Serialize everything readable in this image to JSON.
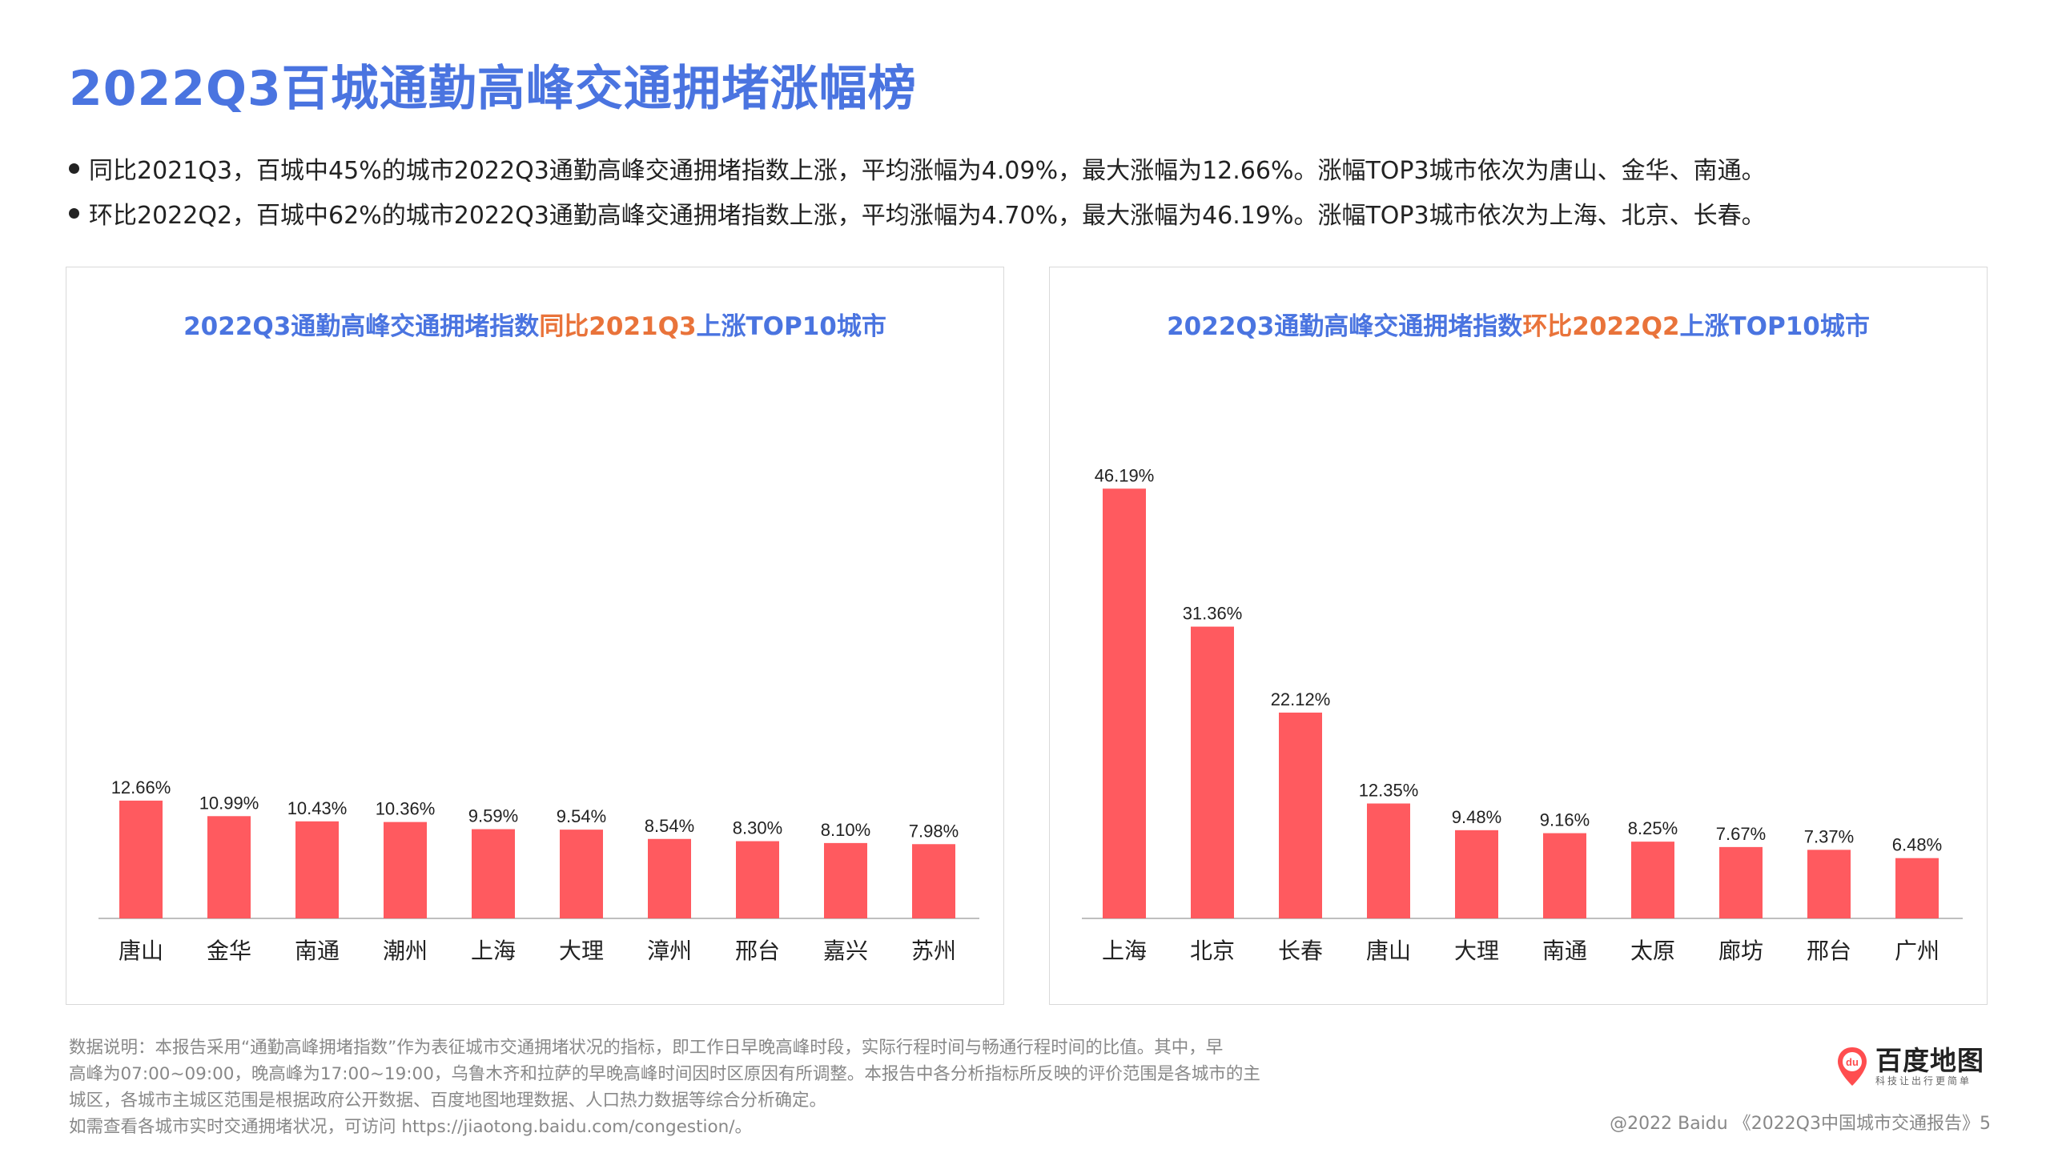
{
  "page": {
    "title": "2022Q3百城通勤高峰交通拥堵涨幅榜",
    "bullets": [
      "同比2021Q3，百城中45%的城市2022Q3通勤高峰交通拥堵指数上涨，平均涨幅为4.09%，最大涨幅为12.66%。涨幅TOP3城市依次为唐山、金华、南通。",
      "环比2022Q2，百城中62%的城市2022Q3通勤高峰交通拥堵指数上涨，平均涨幅为4.70%，最大涨幅为46.19%。涨幅TOP3城市依次为上海、北京、长春。"
    ]
  },
  "left_panel": {
    "title_part1": "2022Q3通勤高峰交通拥堵指数",
    "title_part2": "同比2021Q3",
    "title_part3": "上涨TOP10城市"
  },
  "right_panel": {
    "title_part1": "2022Q3通勤高峰交通拥堵指数",
    "title_part2": "环比2022Q2",
    "title_part3": "上涨TOP10城市"
  },
  "chart_data": [
    {
      "type": "bar",
      "categories": [
        "唐山",
        "金华",
        "南通",
        "潮州",
        "上海",
        "大理",
        "漳州",
        "邢台",
        "嘉兴",
        "苏州"
      ],
      "values": [
        12.66,
        10.99,
        10.43,
        10.36,
        9.59,
        9.54,
        8.54,
        8.3,
        8.1,
        7.98
      ],
      "labels": [
        "12.66%",
        "10.99%",
        "10.43%",
        "10.36%",
        "9.59%",
        "9.54%",
        "8.54%",
        "8.30%",
        "8.10%",
        "7.98%"
      ],
      "title": "2022Q3通勤高峰交通拥堵指数同比2021Q3上涨TOP10城市",
      "xlabel": "",
      "ylabel": "",
      "ylim": [
        0,
        50
      ],
      "grid": false,
      "bar_color": "#ff5a5f"
    },
    {
      "type": "bar",
      "categories": [
        "上海",
        "北京",
        "长春",
        "唐山",
        "大理",
        "南通",
        "太原",
        "廊坊",
        "邢台",
        "广州"
      ],
      "values": [
        46.19,
        31.36,
        22.12,
        12.35,
        9.48,
        9.16,
        8.25,
        7.67,
        7.37,
        6.48
      ],
      "labels": [
        "46.19%",
        "31.36%",
        "22.12%",
        "12.35%",
        "9.48%",
        "9.16%",
        "8.25%",
        "7.67%",
        "7.37%",
        "6.48%"
      ],
      "title": "2022Q3通勤高峰交通拥堵指数环比2022Q2上涨TOP10城市",
      "xlabel": "",
      "ylabel": "",
      "ylim": [
        0,
        50
      ],
      "grid": false,
      "bar_color": "#ff5a5f"
    }
  ],
  "footnote": {
    "line1": "数据说明：本报告采用“通勤高峰拥堵指数”作为表征城市交通拥堵状况的指标，即工作日早晚高峰时段，实际行程时间与畅通行程时间的比值。其中，早",
    "line2": "高峰为07:00~09:00，晚高峰为17:00~19:00，乌鲁木齐和拉萨的早晚高峰时间因时区原因有所调整。本报告中各分析指标所反映的评价范围是各城市的主",
    "line3": "城区，各城市主城区范围是根据政府公开数据、百度地图地理数据、人口热力数据等综合分析确定。",
    "line4": "如需查看各城市实时交通拥堵状况，可访问 https://jiaotong.baidu.com/congestion/。"
  },
  "logo": {
    "pin_text": "du",
    "name": "百度地图",
    "slogan": "科技让出行更简单",
    "pin_color": "#ff4d4f"
  },
  "copyright": "@2022 Baidu 《2022Q3中国城市交通报告》5"
}
